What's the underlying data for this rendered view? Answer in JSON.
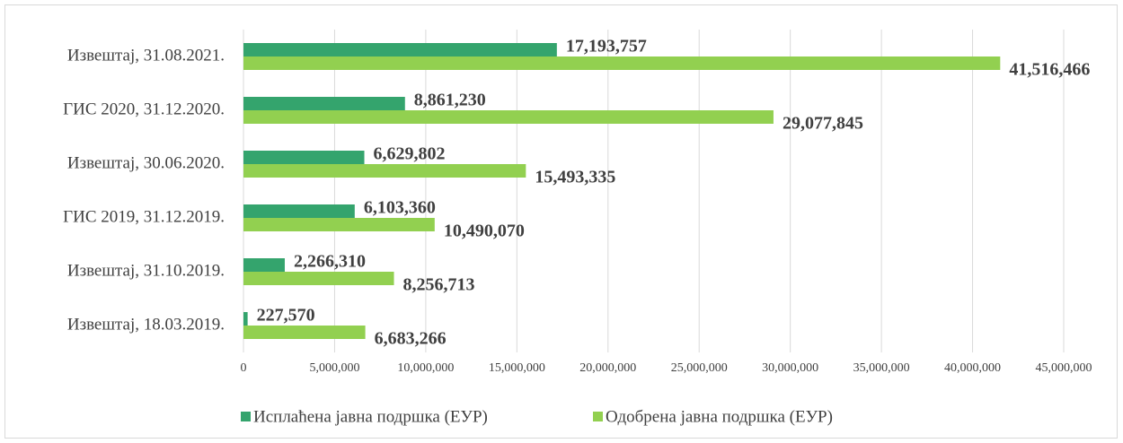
{
  "chart_data": {
    "type": "bar",
    "orientation": "horizontal",
    "categories": [
      "Извештај, 31.08.2021.",
      "ГИС 2020, 31.12.2020.",
      "Извештај, 30.06.2020.",
      "ГИС 2019, 31.12.2019.",
      "Извештај, 31.10.2019.",
      "Извештај, 18.03.2019."
    ],
    "series": [
      {
        "name": "Исплаћена јавна подршка (ЕУР)",
        "color": "#34a46d",
        "values": [
          17193757,
          8861230,
          6629802,
          6103360,
          2266310,
          227570
        ],
        "value_labels": [
          "17,193,757",
          "8,861,230",
          "6,629,802",
          "6,103,360",
          "2,266,310",
          "227,570"
        ]
      },
      {
        "name": "Одобрена јавна подршка (ЕУР)",
        "color": "#92d050",
        "values": [
          41516466,
          29077845,
          15493335,
          10490070,
          8256713,
          6683266
        ],
        "value_labels": [
          "41,516,466",
          "29,077,845",
          "15,493,335",
          "10,490,070",
          "8,256,713",
          "6,683,266"
        ]
      }
    ],
    "xlim": [
      0,
      45000000
    ],
    "xticks": [
      0,
      {
        "value": 5000000,
        "label": "5,000,000"
      },
      {
        "value": 10000000,
        "label": "10,000,000"
      },
      {
        "value": 15000000,
        "label": "15,000,000"
      },
      {
        "value": 20000000,
        "label": "20,000,000"
      },
      {
        "value": 25000000,
        "label": "25,000,000"
      },
      {
        "value": 30000000,
        "label": "30,000,000"
      },
      {
        "value": 35000000,
        "label": "35,000,000"
      },
      {
        "value": 40000000,
        "label": "40,000,000"
      },
      {
        "value": 45000000,
        "label": "45,000,000"
      }
    ],
    "grid": true,
    "legend": "bottom"
  }
}
